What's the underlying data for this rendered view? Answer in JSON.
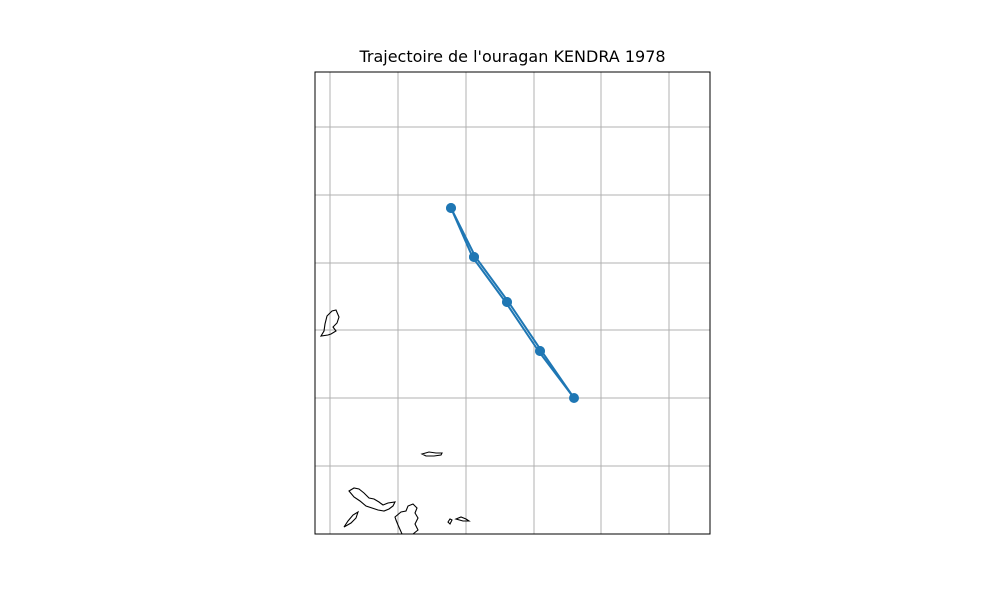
{
  "title": "Trajectoire de l'ouragan KENDRA 1978",
  "colors": {
    "track": "#1f77b4",
    "grid": "#b0b0b0",
    "coast": "#000000",
    "frame": "#000000"
  },
  "icons": {
    "track_point": "filled-circle"
  },
  "map": {
    "frame_lines": true,
    "gridlines": true,
    "legend": "none"
  },
  "track": {
    "points": [
      {
        "order": 1,
        "label": ""
      },
      {
        "order": 2,
        "label": ""
      },
      {
        "order": 3,
        "label": ""
      },
      {
        "order": 4,
        "label": ""
      },
      {
        "order": 5,
        "label": ""
      },
      {
        "order": 6,
        "label": ""
      },
      {
        "order": 7,
        "label": ""
      },
      {
        "order": 8,
        "label": ""
      },
      {
        "order": 9,
        "label": ""
      }
    ]
  }
}
